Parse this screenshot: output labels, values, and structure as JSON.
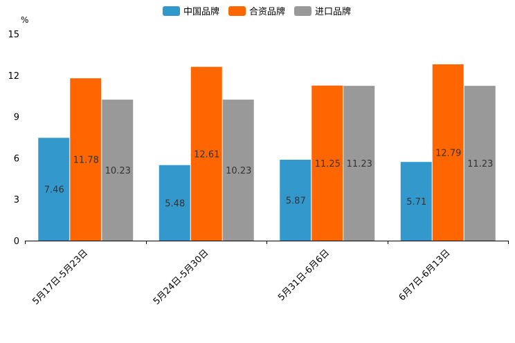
{
  "chart_data": {
    "type": "bar",
    "ylabel": "%",
    "ylim": [
      0,
      15
    ],
    "yticks": [
      0,
      3,
      6,
      9,
      12,
      15
    ],
    "grid": false,
    "legend_position": "top-center",
    "categories": [
      "5月17日-5月23日",
      "5月24日-5月30日",
      "5月31日-6月6日",
      "6月7日-6月13日"
    ],
    "series": [
      {
        "name": "中国品牌",
        "color": "#3399cc",
        "values": [
          7.46,
          5.48,
          5.87,
          5.71
        ]
      },
      {
        "name": "合资品牌",
        "color": "#ff6600",
        "values": [
          11.78,
          12.61,
          11.25,
          12.79
        ]
      },
      {
        "name": "进口品牌",
        "color": "#999999",
        "values": [
          10.23,
          10.23,
          11.23,
          11.23
        ]
      }
    ]
  }
}
